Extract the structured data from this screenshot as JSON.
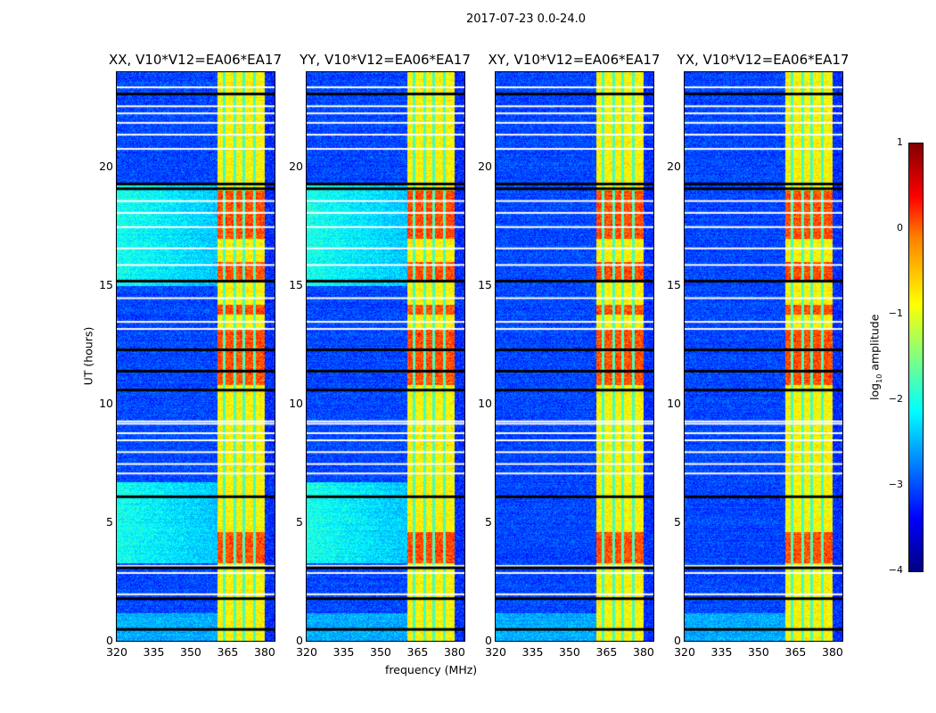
{
  "chart_data": {
    "type": "heatmap",
    "title": "2017-07-23 0.0-24.0",
    "xlabel": "frequency (MHz)",
    "ylabel": "UT (hours)",
    "xlim": [
      320,
      384
    ],
    "ylim": [
      0,
      24
    ],
    "xticks": [
      "320",
      "335",
      "350",
      "365",
      "380"
    ],
    "xtick_values": [
      320,
      335,
      350,
      365,
      380
    ],
    "yticks": [
      "0",
      "5",
      "10",
      "15",
      "20"
    ],
    "ytick_values": [
      0,
      5,
      10,
      15,
      20
    ],
    "panels": [
      {
        "title": "XX, V10*V12=EA06*EA17",
        "bright_background": true
      },
      {
        "title": "YY, V10*V12=EA06*EA17",
        "bright_background": true
      },
      {
        "title": "XY, V10*V12=EA06*EA17",
        "bright_background": false
      },
      {
        "title": "YX, V10*V12=EA06*EA17",
        "bright_background": false
      }
    ],
    "colorbar": {
      "label": "log10 amplitude",
      "label_main": "log",
      "label_sub": "10",
      "label_rest": " amplitude",
      "range": [
        -4,
        1
      ],
      "ticks": [
        "1",
        "0",
        "−1",
        "−2",
        "−3",
        "−4"
      ],
      "tick_values": [
        1,
        0,
        -1,
        -2,
        -3,
        -4
      ]
    },
    "rfi_band_mhz": [
      360.5,
      380
    ],
    "strong_rfi_hours": [
      [
        3.3,
        4.6
      ],
      [
        10.8,
        13.2
      ],
      [
        13.8,
        14.2
      ],
      [
        15.2,
        16.0
      ],
      [
        17.0,
        19.0
      ]
    ],
    "elevated_background_hours": [
      [
        3.3,
        6.7
      ],
      [
        15.0,
        19.3
      ]
    ],
    "flagged_white_hours": [
      2.0,
      2.9,
      3.2,
      7.1,
      7.5,
      8.0,
      8.5,
      8.8,
      9.2,
      9.3,
      13.2,
      13.5,
      14.5,
      15.9,
      16.6,
      17.5,
      18.1,
      18.6,
      20.8,
      21.4,
      21.9,
      22.3,
      22.6,
      23.4
    ],
    "flagged_black_hours": [
      0.5,
      1.8,
      3.1,
      6.1,
      10.6,
      11.4,
      12.3,
      15.2,
      19.1,
      19.3,
      23.1
    ]
  }
}
